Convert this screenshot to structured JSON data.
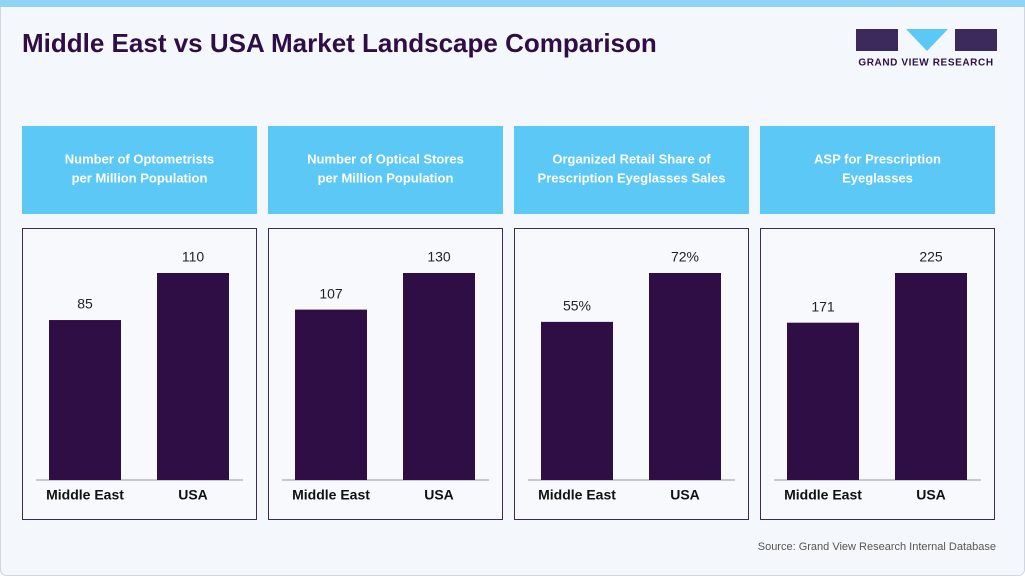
{
  "title": "Middle East vs USA Market Landscape Comparison",
  "logo": "GRAND VIEW RESEARCH",
  "source": "Source: Grand View Research Internal Database",
  "chart_data": [
    {
      "type": "bar",
      "title": [
        "Number of Optometrists",
        "per Million Population"
      ],
      "categories": [
        "Middle East",
        "USA"
      ],
      "values": [
        85,
        110
      ],
      "color": "#2f0e45"
    },
    {
      "type": "bar",
      "title": [
        "Number of Optical Stores",
        "per Million Population"
      ],
      "categories": [
        "Middle East",
        "USA"
      ],
      "values": [
        107,
        130
      ],
      "color": "#2f0e45"
    },
    {
      "type": "bar",
      "title": [
        "Organized Retail Share of",
        "Prescription Eyeglasses Sales"
      ],
      "categories": [
        "Middle East",
        "USA"
      ],
      "values": [
        55,
        72
      ],
      "value_labels": [
        "55%",
        "72%"
      ],
      "color": "#2f0e45"
    },
    {
      "type": "bar",
      "title": [
        "ASP for Prescription",
        "Eyeglasses"
      ],
      "categories": [
        "Middle East",
        "USA"
      ],
      "values": [
        171,
        225
      ],
      "color": "#2f0e45"
    }
  ]
}
